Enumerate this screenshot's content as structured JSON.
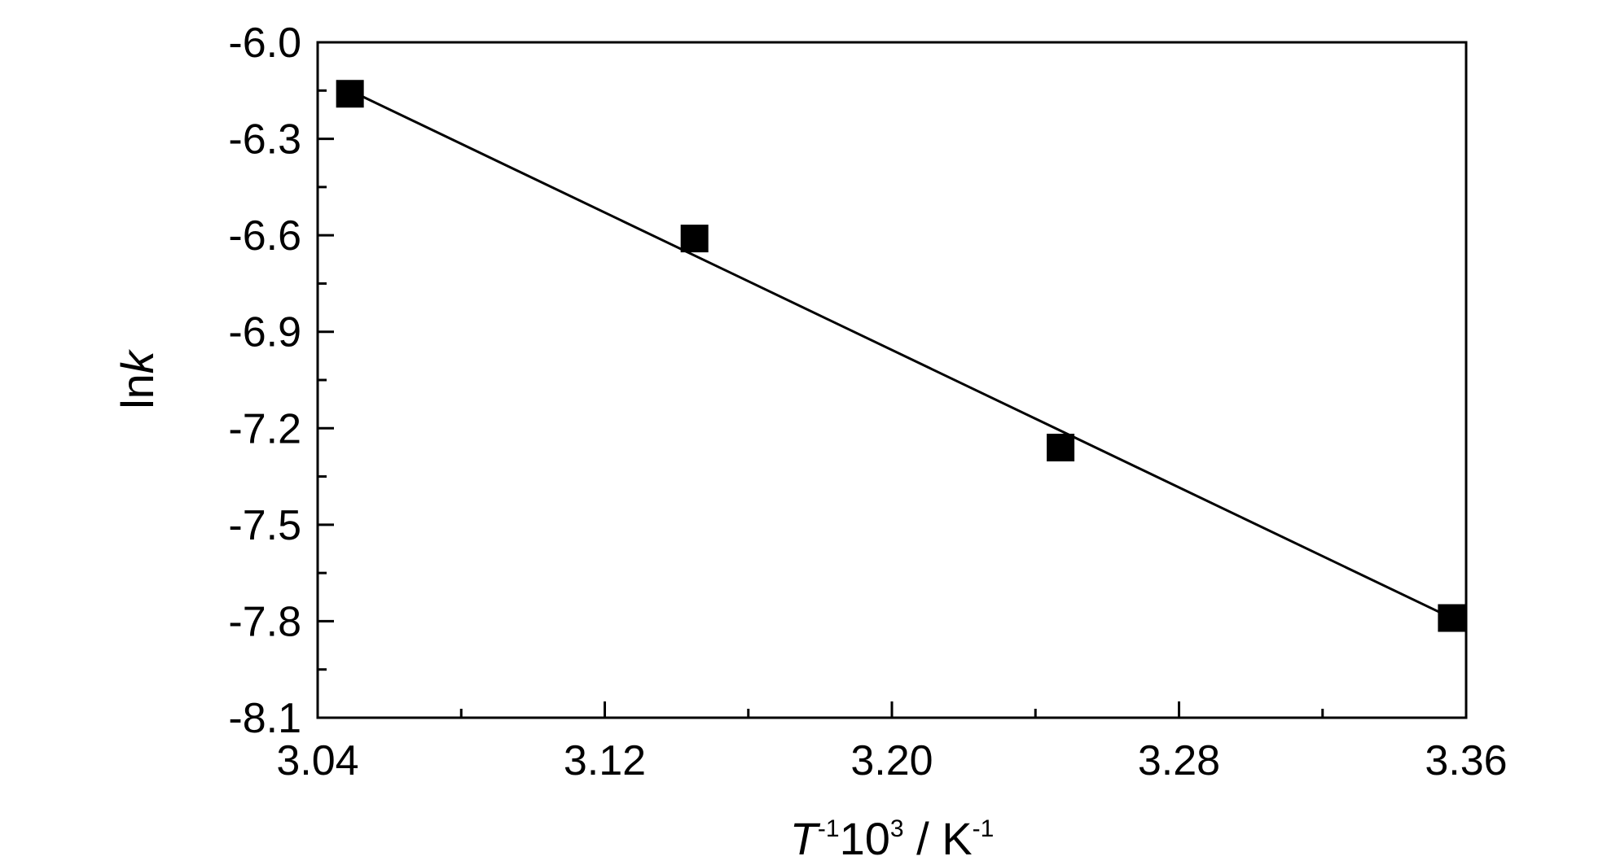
{
  "chart_data": {
    "type": "scatter",
    "title": "",
    "xlabel": {
      "var": "T",
      "var_sup": "-1",
      "mid": "10",
      "mid_sup": "3",
      "sep": " / K",
      "end_sup": "-1"
    },
    "ylabel": {
      "prefix": "ln",
      "var": "k"
    },
    "xlim": [
      3.04,
      3.36
    ],
    "ylim": [
      -8.1,
      -6.0
    ],
    "x_major_ticks": [
      3.04,
      3.12,
      3.2,
      3.28,
      3.36
    ],
    "x_tick_labels": [
      "3.04",
      "3.12",
      "3.20",
      "3.28",
      "3.36"
    ],
    "x_minor_ticks": [
      3.08,
      3.16,
      3.24,
      3.32
    ],
    "y_major_ticks": [
      -6.0,
      -6.3,
      -6.6,
      -6.9,
      -7.2,
      -7.5,
      -7.8,
      -8.1
    ],
    "y_tick_labels": [
      "-6.0",
      "-6.3",
      "-6.6",
      "-6.9",
      "-7.2",
      "-7.5",
      "-7.8",
      "-8.1"
    ],
    "y_minor_ticks": [
      -6.15,
      -6.45,
      -6.75,
      -7.05,
      -7.35,
      -7.65,
      -7.95
    ],
    "grid": false,
    "series": [
      {
        "marker": "square",
        "color": "#000000",
        "x": [
          3.049,
          3.145,
          3.247,
          3.356
        ],
        "y": [
          -6.16,
          -6.61,
          -7.26,
          -7.79
        ]
      }
    ],
    "fit_line": {
      "color": "#000000",
      "x": [
        3.049,
        3.356
      ],
      "y": [
        -6.15,
        -7.79
      ]
    }
  }
}
